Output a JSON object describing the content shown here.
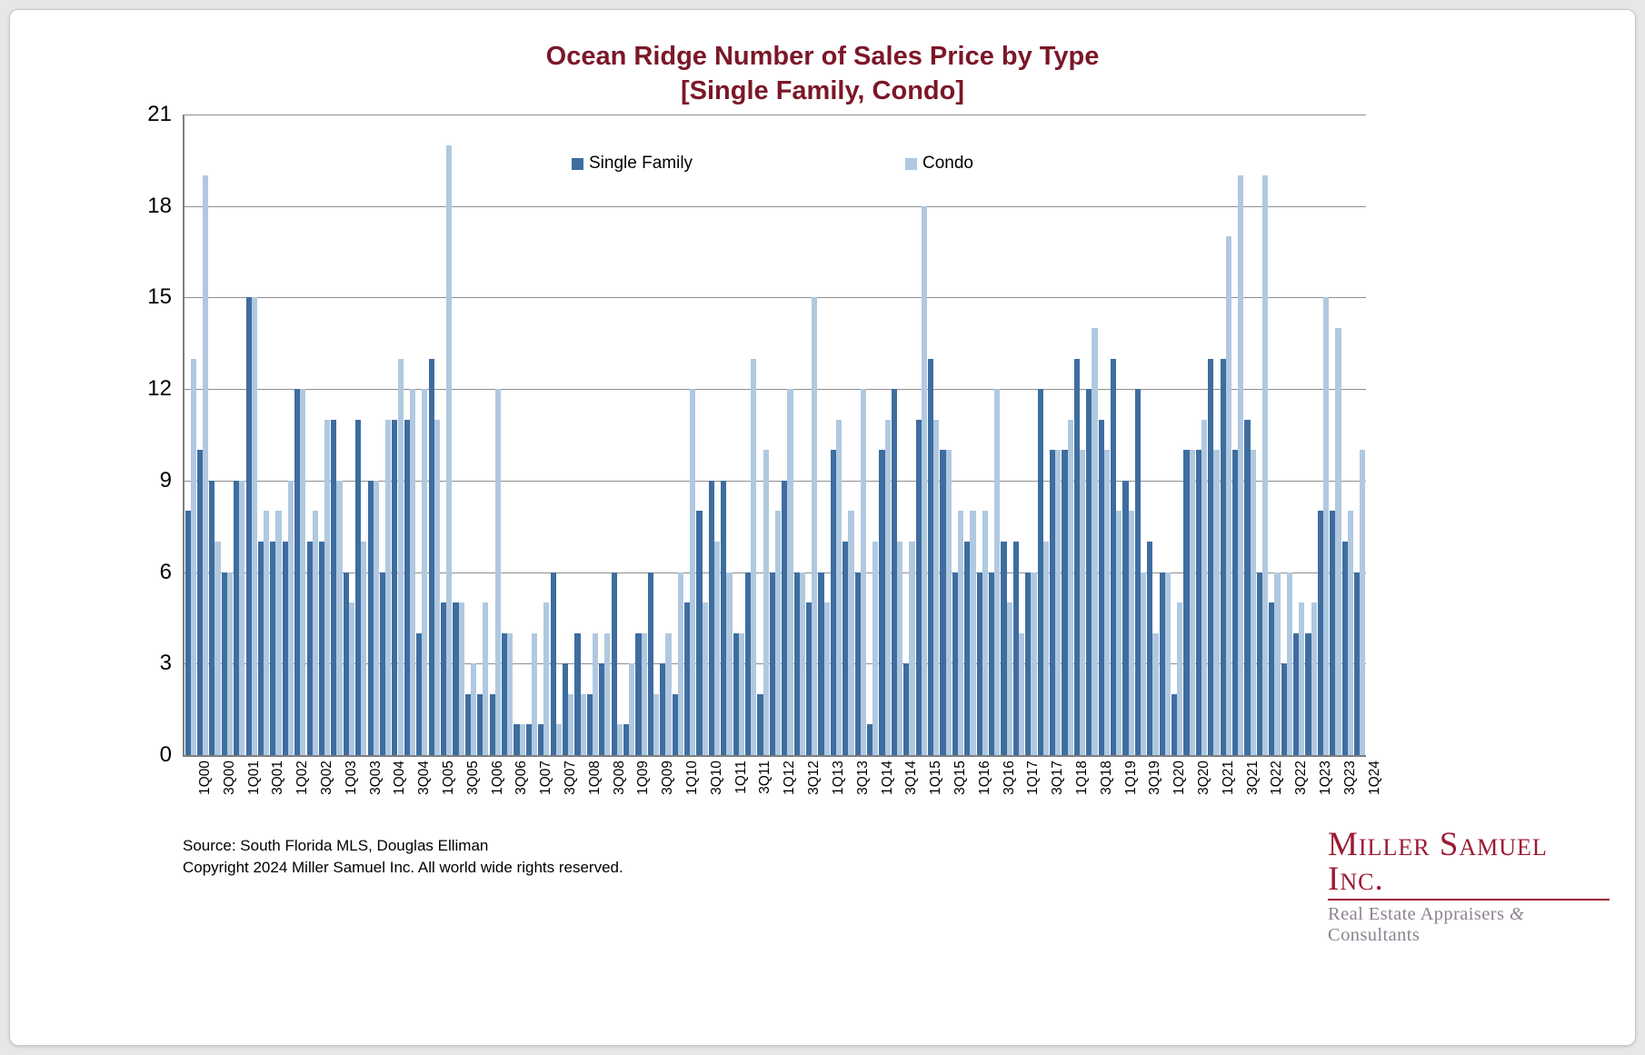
{
  "title_line1": "Ocean Ridge Number of Sales Price by Type",
  "title_line2": "[Single Family, Condo]",
  "legend": {
    "series1_label": "Single Family",
    "series2_label": "Condo"
  },
  "colors": {
    "single_family": "#3e6da0",
    "condo": "#b0c9e0",
    "title": "#7b1728",
    "gridline": "#8f8f8f",
    "logo": "#9b1b33"
  },
  "footer": {
    "source": "Source: South Florida MLS, Douglas Elliman",
    "copyright": "Copyright 2024 Miller Samuel Inc.  All world wide rights reserved."
  },
  "logo": {
    "name": "Miller Samuel Inc.",
    "tagline_pre": "Real Estate Appraisers ",
    "tagline_amp": "&",
    "tagline_post": " Consultants"
  },
  "chart_data": {
    "type": "bar",
    "title": "Ocean Ridge Number of Sales Price by Type [Single Family, Condo]",
    "xlabel": "",
    "ylabel": "",
    "ylim": [
      0,
      21
    ],
    "ytick_step": 3,
    "yticks": [
      0,
      3,
      6,
      9,
      12,
      15,
      18,
      21
    ],
    "grid": true,
    "legend_position": "top-inside",
    "x_tick_every": 2,
    "categories": [
      "1Q00",
      "2Q00",
      "3Q00",
      "4Q00",
      "1Q01",
      "2Q01",
      "3Q01",
      "4Q01",
      "1Q02",
      "2Q02",
      "3Q02",
      "4Q02",
      "1Q03",
      "2Q03",
      "3Q03",
      "4Q03",
      "1Q04",
      "2Q04",
      "3Q04",
      "4Q04",
      "1Q05",
      "2Q05",
      "3Q05",
      "4Q05",
      "1Q06",
      "2Q06",
      "3Q06",
      "4Q06",
      "1Q07",
      "2Q07",
      "3Q07",
      "4Q07",
      "1Q08",
      "2Q08",
      "3Q08",
      "4Q08",
      "1Q09",
      "2Q09",
      "3Q09",
      "4Q09",
      "1Q10",
      "2Q10",
      "3Q10",
      "4Q10",
      "1Q11",
      "2Q11",
      "3Q11",
      "4Q11",
      "1Q12",
      "2Q12",
      "3Q12",
      "4Q12",
      "1Q13",
      "2Q13",
      "3Q13",
      "4Q13",
      "1Q14",
      "2Q14",
      "3Q14",
      "4Q14",
      "1Q15",
      "2Q15",
      "3Q15",
      "4Q15",
      "1Q16",
      "2Q16",
      "3Q16",
      "4Q16",
      "1Q17",
      "2Q17",
      "3Q17",
      "4Q17",
      "1Q18",
      "2Q18",
      "3Q18",
      "4Q18",
      "1Q19",
      "2Q19",
      "3Q19",
      "4Q19",
      "1Q20",
      "2Q20",
      "3Q20",
      "4Q20",
      "1Q21",
      "2Q21",
      "3Q21",
      "4Q21",
      "1Q22",
      "2Q22",
      "3Q22",
      "4Q22",
      "1Q23",
      "2Q23",
      "3Q23",
      "4Q23",
      "1Q24"
    ],
    "series": [
      {
        "name": "Single Family",
        "values": [
          8,
          10,
          9,
          6,
          9,
          15,
          7,
          7,
          7,
          12,
          7,
          7,
          11,
          6,
          11,
          9,
          6,
          11,
          11,
          4,
          13,
          5,
          5,
          2,
          2,
          2,
          4,
          1,
          1,
          1,
          6,
          3,
          4,
          2,
          3,
          6,
          1,
          4,
          6,
          3,
          2,
          5,
          8,
          9,
          9,
          4,
          6,
          2,
          6,
          9,
          6,
          5,
          6,
          10,
          7,
          6,
          1,
          10,
          12,
          3,
          11,
          13,
          10,
          6,
          7,
          6,
          6,
          7,
          7,
          6,
          12,
          10,
          10,
          13,
          12,
          11,
          13,
          9,
          12,
          7,
          6,
          2,
          10,
          10,
          13,
          13,
          10,
          11,
          6,
          5,
          3,
          4,
          4,
          8,
          8,
          7,
          6
        ]
      },
      {
        "name": "Condo",
        "values": [
          13,
          19,
          7,
          6,
          9,
          15,
          8,
          8,
          9,
          12,
          8,
          11,
          9,
          5,
          7,
          9,
          11,
          13,
          12,
          12,
          11,
          20,
          5,
          3,
          5,
          12,
          4,
          1,
          4,
          5,
          1,
          2,
          2,
          4,
          4,
          1,
          3,
          4,
          2,
          4,
          6,
          12,
          5,
          7,
          6,
          4,
          13,
          10,
          8,
          12,
          6,
          15,
          5,
          11,
          8,
          12,
          7,
          11,
          7,
          7,
          18,
          11,
          10,
          8,
          8,
          8,
          12,
          5,
          4,
          6,
          7,
          10,
          11,
          10,
          14,
          10,
          8,
          8,
          6,
          4,
          6,
          5,
          10,
          11,
          10,
          17,
          19,
          10,
          19,
          6,
          6,
          5,
          5,
          15,
          14,
          8,
          10
        ]
      }
    ]
  }
}
